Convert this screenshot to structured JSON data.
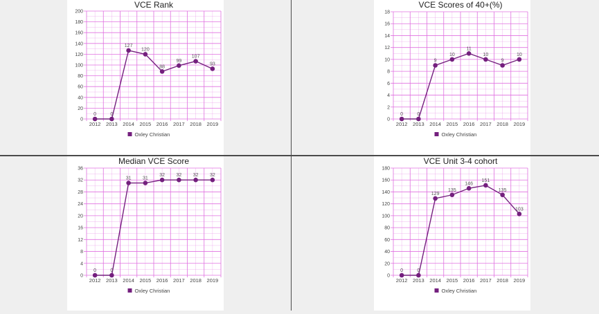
{
  "colors": {
    "series": "#74207e",
    "grid": "#e070e0",
    "panel_bg": "#ffffff",
    "page_bg": "#efefef"
  },
  "chart_data": [
    {
      "type": "line",
      "title": "VCE Rank",
      "x": [
        "2012",
        "2013",
        "2014",
        "2015",
        "2016",
        "2017",
        "2018",
        "2019"
      ],
      "ylim": [
        0,
        200
      ],
      "yticks": [
        0,
        20,
        40,
        60,
        80,
        100,
        120,
        140,
        160,
        180,
        200
      ],
      "series": [
        {
          "name": "Oxley Christian",
          "values": [
            0,
            0,
            127,
            120,
            88,
            99,
            107,
            93
          ],
          "labels": [
            "0",
            "0",
            "127",
            "120",
            "88",
            "99",
            "107",
            "93"
          ]
        }
      ],
      "grid": true,
      "legend": "bottom"
    },
    {
      "type": "line",
      "title": "VCE Scores of 40+(%)",
      "x": [
        "2012",
        "2013",
        "2014",
        "2015",
        "2016",
        "2017",
        "2018",
        "2019"
      ],
      "ylim": [
        0,
        18
      ],
      "yticks": [
        0,
        2,
        4,
        6,
        8,
        10,
        12,
        14,
        16,
        18
      ],
      "series": [
        {
          "name": "Oxley Christian",
          "values": [
            0,
            0,
            9,
            10,
            11,
            10,
            9,
            10
          ],
          "labels": [
            "0",
            "0",
            "9",
            "10",
            "11",
            "10",
            "9",
            "10"
          ]
        }
      ],
      "grid": true,
      "legend": "bottom"
    },
    {
      "type": "line",
      "title": "Median VCE Score",
      "x": [
        "2012",
        "2013",
        "2014",
        "2015",
        "2016",
        "2017",
        "2018",
        "2019"
      ],
      "ylim": [
        0,
        36
      ],
      "yticks": [
        0,
        4,
        8,
        12,
        16,
        20,
        24,
        28,
        32,
        36
      ],
      "series": [
        {
          "name": "Oxley Christian",
          "values": [
            0,
            0,
            31,
            31,
            32,
            32,
            32,
            32
          ],
          "labels": [
            "0",
            "0",
            "31",
            "31",
            "32",
            "32",
            "32",
            "32"
          ]
        }
      ],
      "grid": true,
      "legend": "bottom"
    },
    {
      "type": "line",
      "title": "VCE Unit 3-4 cohort",
      "x": [
        "2012",
        "2013",
        "2014",
        "2015",
        "2016",
        "2017",
        "2018",
        "2019"
      ],
      "ylim": [
        0,
        180
      ],
      "yticks": [
        0,
        20,
        40,
        60,
        80,
        100,
        120,
        140,
        160,
        180
      ],
      "series": [
        {
          "name": "Oxley Christian",
          "values": [
            0,
            0,
            129,
            135,
            146,
            151,
            135,
            103
          ],
          "labels": [
            "0",
            "0",
            "129",
            "135",
            "146",
            "151",
            "135",
            "103"
          ]
        }
      ],
      "grid": true,
      "legend": "bottom"
    }
  ]
}
